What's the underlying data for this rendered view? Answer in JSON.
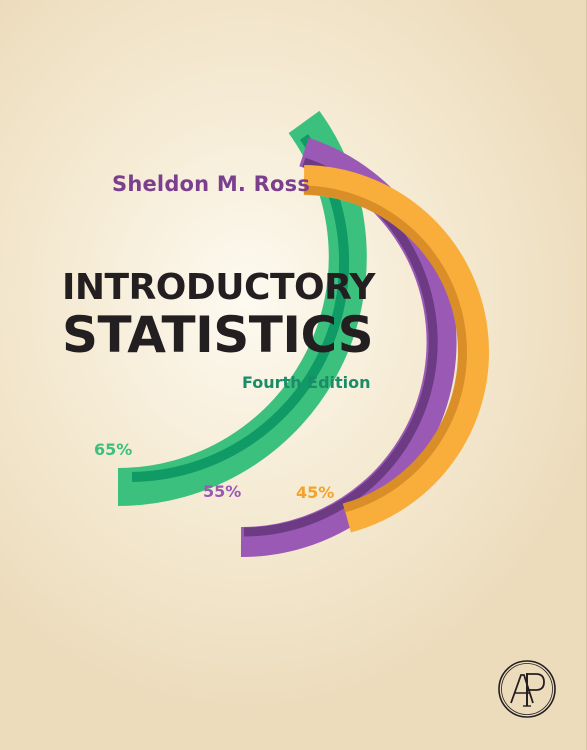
{
  "book": {
    "author": "Sheldon M. Ross",
    "title_line1": "INTRODUCTORY",
    "title_line2": "STATISTICS",
    "edition": "Fourth Edition"
  },
  "ring_labels": [
    {
      "label": "65%",
      "value": 65,
      "color": "#3cc07e"
    },
    {
      "label": "55%",
      "value": 55,
      "color": "#9b59b6"
    },
    {
      "label": "45%",
      "value": 45,
      "color": "#f4a32a"
    }
  ],
  "colors": {
    "background": "#f6ecd6",
    "title": "#231f20",
    "author": "#7b3f8e",
    "edition": "#1a8c68",
    "green_ring": "#3cc07e",
    "green_ring_shadow": "#0f9a66",
    "purple_ring": "#9b59b6",
    "purple_ring_shadow": "#6d3a84",
    "orange_ring": "#f9ae3b",
    "orange_ring_shadow": "#d98e28"
  },
  "publisher_logo": {
    "icon": "academic-press-logo",
    "letters": "AP"
  }
}
